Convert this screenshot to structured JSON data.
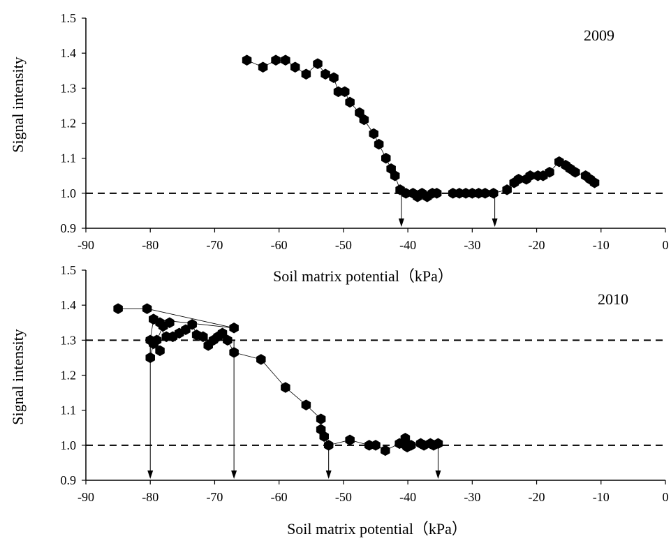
{
  "chart_data": [
    {
      "type": "scatter",
      "title": "",
      "annotation": "2009",
      "xlabel": "Soil matrix potential（kPa）",
      "ylabel": "Signal intensity",
      "xlim": [
        -90,
        0
      ],
      "ylim": [
        0.9,
        1.5
      ],
      "xticks": [
        "-90",
        "-80",
        "-70",
        "-60",
        "-50",
        "-40",
        "-30",
        "-20",
        "-10",
        "0"
      ],
      "yticks": [
        "0.9",
        "1.0",
        "1.1",
        "1.2",
        "1.3",
        "1.4",
        "1.5"
      ],
      "grid": false,
      "marker": "hexagon",
      "connected": true,
      "reference_lines": [
        1.0
      ],
      "arrows_at_x": [
        -41,
        -26.5
      ],
      "points": [
        [
          -65,
          1.38
        ],
        [
          -62.5,
          1.36
        ],
        [
          -60.5,
          1.38
        ],
        [
          -59,
          1.38
        ],
        [
          -57.5,
          1.36
        ],
        [
          -55.8,
          1.34
        ],
        [
          -54,
          1.37
        ],
        [
          -52.8,
          1.34
        ],
        [
          -51.5,
          1.33
        ],
        [
          -50.8,
          1.29
        ],
        [
          -49.8,
          1.29
        ],
        [
          -49,
          1.26
        ],
        [
          -47.5,
          1.23
        ],
        [
          -46.8,
          1.21
        ],
        [
          -45.3,
          1.17
        ],
        [
          -44.5,
          1.14
        ],
        [
          -43.4,
          1.1
        ],
        [
          -42.6,
          1.07
        ],
        [
          -42,
          1.05
        ],
        [
          -41.2,
          1.01
        ],
        [
          -40.3,
          1.0
        ],
        [
          -39.2,
          1.0
        ],
        [
          -38.5,
          0.99
        ],
        [
          -37.8,
          1.0
        ],
        [
          -37,
          0.99
        ],
        [
          -36.2,
          1.0
        ],
        [
          -35.5,
          1.0
        ],
        [
          -33,
          1.0
        ],
        [
          -32,
          1.0
        ],
        [
          -31,
          1.0
        ],
        [
          -30,
          1.0
        ],
        [
          -29,
          1.0
        ],
        [
          -28,
          1.0
        ],
        [
          -26.7,
          1.0
        ],
        [
          -24.6,
          1.01
        ],
        [
          -23.5,
          1.03
        ],
        [
          -22.8,
          1.04
        ],
        [
          -21.6,
          1.04
        ],
        [
          -21,
          1.05
        ],
        [
          -19.8,
          1.05
        ],
        [
          -19,
          1.05
        ],
        [
          -18,
          1.06
        ],
        [
          -16.5,
          1.09
        ],
        [
          -15.5,
          1.08
        ],
        [
          -14.8,
          1.07
        ],
        [
          -14,
          1.06
        ],
        [
          -12.4,
          1.05
        ],
        [
          -11.7,
          1.04
        ],
        [
          -11,
          1.03
        ]
      ]
    },
    {
      "type": "scatter",
      "title": "",
      "annotation": "2010",
      "xlabel": "Soil matrix potential（kPa）",
      "ylabel": "Signal intensity",
      "xlim": [
        -90,
        0
      ],
      "ylim": [
        0.9,
        1.5
      ],
      "xticks": [
        "-90",
        "-80",
        "-70",
        "-60",
        "-50",
        "-40",
        "-30",
        "-20",
        "-10",
        "0"
      ],
      "yticks": [
        "0.9",
        "1.0",
        "1.1",
        "1.2",
        "1.3",
        "1.4",
        "1.5"
      ],
      "grid": false,
      "marker": "hexagon",
      "connected": true,
      "reference_lines": [
        1.3,
        1.0
      ],
      "arrows_at_x": [
        -80,
        -67,
        -52.3,
        -35.3
      ],
      "points": [
        [
          -85,
          1.39
        ],
        [
          -80.5,
          1.39
        ],
        [
          -67,
          1.335
        ],
        [
          -79.5,
          1.36
        ],
        [
          -78.5,
          1.35
        ],
        [
          -77,
          1.35
        ],
        [
          -78,
          1.34
        ],
        [
          -79,
          1.3
        ],
        [
          -78.5,
          1.27
        ],
        [
          -79.5,
          1.29
        ],
        [
          -80,
          1.25
        ],
        [
          -80,
          1.3
        ],
        [
          -79.5,
          1.36
        ],
        [
          -77.5,
          1.31
        ],
        [
          -76.5,
          1.31
        ],
        [
          -75.5,
          1.32
        ],
        [
          -74.5,
          1.33
        ],
        [
          -73.5,
          1.345
        ],
        [
          -72.8,
          1.315
        ],
        [
          -71.8,
          1.31
        ],
        [
          -71,
          1.285
        ],
        [
          -70.2,
          1.3
        ],
        [
          -69.5,
          1.31
        ],
        [
          -68.8,
          1.32
        ],
        [
          -68,
          1.3
        ],
        [
          -67,
          1.265
        ],
        [
          -62.8,
          1.245
        ],
        [
          -59,
          1.165
        ],
        [
          -55.8,
          1.115
        ],
        [
          -53.5,
          1.075
        ],
        [
          -53.5,
          1.045
        ],
        [
          -53,
          1.025
        ],
        [
          -52.3,
          1.0
        ],
        [
          -49,
          1.015
        ],
        [
          -46,
          1.0
        ],
        [
          -45,
          1.0
        ],
        [
          -43.5,
          0.985
        ],
        [
          -41.3,
          1.005
        ],
        [
          -40.8,
          1.005
        ],
        [
          -40.4,
          1.02
        ],
        [
          -40.1,
          0.995
        ],
        [
          -39.5,
          1.0
        ],
        [
          -38,
          1.005
        ],
        [
          -37.5,
          1.0
        ],
        [
          -36.5,
          1.005
        ],
        [
          -36,
          1.0
        ],
        [
          -35.3,
          1.005
        ]
      ]
    }
  ]
}
